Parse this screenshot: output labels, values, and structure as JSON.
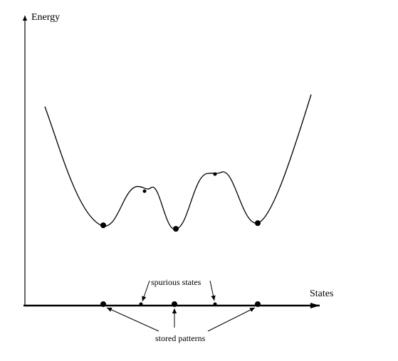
{
  "axes": {
    "y_label": "Energy",
    "x_label": "States"
  },
  "annotations": {
    "spurious": "spurious states",
    "stored": "stored patterns"
  },
  "colors": {
    "ink": "#000000",
    "background": "#ffffff"
  }
}
